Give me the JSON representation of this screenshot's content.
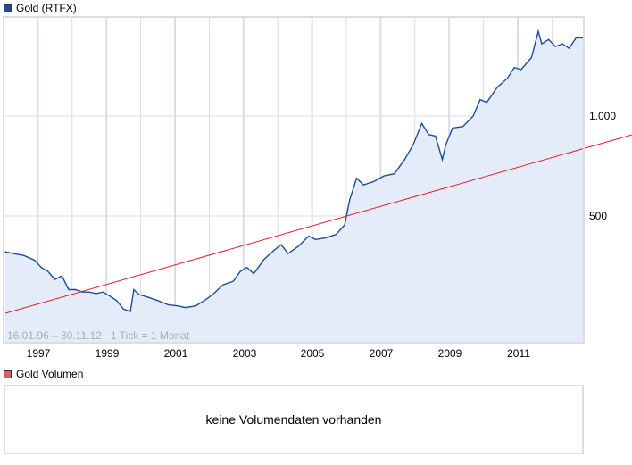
{
  "legend": {
    "main_label": "Gold (RTFX)",
    "main_color": "#1f4e96",
    "volume_label": "Gold Volumen",
    "volume_color": "#d9625e"
  },
  "range_text": "16.01.96 – 30.11.12   1 Tick = 1 Monat",
  "volume_panel": {
    "message": "keine Volumendaten vorhanden"
  },
  "colors": {
    "line": "#1f4e96",
    "fill": "#e4ecfa",
    "trend": "#e0202a",
    "grid": "#d8dde6",
    "frame": "#dddddd"
  },
  "chart_data": {
    "type": "area",
    "title": "Gold (RTFX)",
    "xlabel": "",
    "ylabel": "",
    "y_scale": "log",
    "y_ticks": [
      {
        "value": 500,
        "label": "500"
      },
      {
        "value": 1000,
        "label": "1.000"
      }
    ],
    "x_ticks": [
      "1997",
      "1999",
      "2001",
      "2003",
      "2005",
      "2007",
      "2009",
      "2011"
    ],
    "date_range": "16.01.96 – 30.11.12",
    "grid": true,
    "legend_position": "top-left",
    "series": [
      {
        "name": "Gold (RTFX)",
        "x": [
          1996.04,
          1996.3,
          1996.6,
          1996.9,
          1997.1,
          1997.3,
          1997.5,
          1997.7,
          1997.9,
          1998.1,
          1998.3,
          1998.5,
          1998.7,
          1998.9,
          1999.1,
          1999.3,
          1999.5,
          1999.7,
          1999.8,
          1999.95,
          2000.2,
          2000.5,
          2000.8,
          2001.1,
          2001.3,
          2001.6,
          2001.9,
          2002.1,
          2002.4,
          2002.7,
          2002.9,
          2003.1,
          2003.3,
          2003.6,
          2003.9,
          2004.1,
          2004.3,
          2004.6,
          2004.9,
          2005.1,
          2005.4,
          2005.7,
          2005.95,
          2006.1,
          2006.3,
          2006.5,
          2006.8,
          2007.1,
          2007.4,
          2007.7,
          2007.95,
          2008.2,
          2008.4,
          2008.6,
          2008.8,
          2008.9,
          2009.1,
          2009.4,
          2009.7,
          2009.9,
          2010.1,
          2010.4,
          2010.7,
          2010.9,
          2011.1,
          2011.4,
          2011.6,
          2011.7,
          2011.9,
          2012.1,
          2012.3,
          2012.5,
          2012.7,
          2012.92
        ],
        "values": [
          390,
          385,
          380,
          368,
          350,
          340,
          322,
          330,
          300,
          300,
          295,
          295,
          292,
          295,
          287,
          278,
          262,
          258,
          300,
          290,
          285,
          278,
          270,
          268,
          265,
          268,
          280,
          290,
          310,
          318,
          340,
          350,
          335,
          370,
          395,
          410,
          385,
          405,
          435,
          425,
          430,
          440,
          470,
          560,
          650,
          620,
          635,
          660,
          670,
          740,
          820,
          950,
          880,
          870,
          740,
          820,
          920,
          930,
          1000,
          1120,
          1100,
          1220,
          1300,
          1400,
          1380,
          1500,
          1800,
          1650,
          1700,
          1620,
          1650,
          1600,
          1720,
          1720
        ]
      },
      {
        "name": "Trend",
        "x": [
          1996.04,
          2012.92
        ],
        "values": [
          200,
          650
        ]
      }
    ]
  }
}
